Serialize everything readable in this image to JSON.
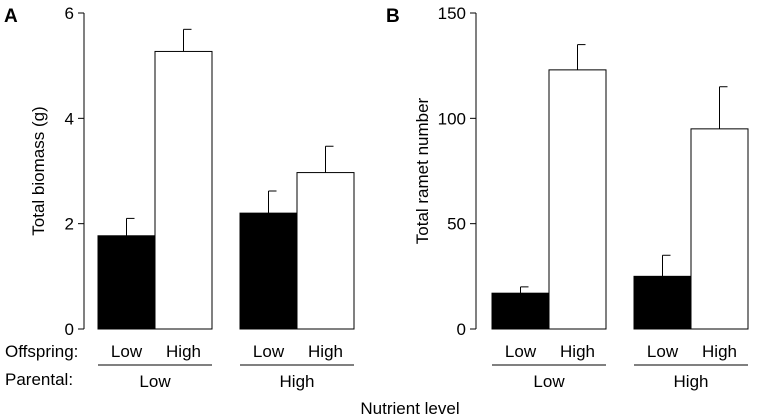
{
  "chart_data": [
    {
      "type": "bar",
      "panel": "A",
      "ylabel": "Total biomass (g)",
      "ylim": [
        0,
        6
      ],
      "yticks": [
        0,
        2,
        4,
        6
      ],
      "legend": "none",
      "parental_groups": [
        {
          "label": "Low",
          "offspring": [
            "Low",
            "High"
          ],
          "values": [
            1.77,
            5.27
          ],
          "errors": [
            0.33,
            0.42
          ],
          "fills": [
            "#000000",
            "#ffffff"
          ]
        },
        {
          "label": "High",
          "offspring": [
            "Low",
            "High"
          ],
          "values": [
            2.2,
            2.97
          ],
          "errors": [
            0.42,
            0.5
          ],
          "fills": [
            "#000000",
            "#ffffff"
          ]
        }
      ]
    },
    {
      "type": "bar",
      "panel": "B",
      "ylabel": "Total ramet number",
      "ylim": [
        0,
        150
      ],
      "yticks": [
        0,
        50,
        100,
        150
      ],
      "legend": "none",
      "parental_groups": [
        {
          "label": "Low",
          "offspring": [
            "Low",
            "High"
          ],
          "values": [
            17,
            123
          ],
          "errors": [
            3,
            12
          ],
          "fills": [
            "#000000",
            "#ffffff"
          ]
        },
        {
          "label": "High",
          "offspring": [
            "Low",
            "High"
          ],
          "values": [
            25,
            95
          ],
          "errors": [
            10,
            20
          ],
          "fills": [
            "#000000",
            "#ffffff"
          ]
        }
      ]
    }
  ],
  "labels": {
    "offspring_row": "Offspring:",
    "parental_row": "Parental:",
    "xlabel": "Nutrient level"
  }
}
